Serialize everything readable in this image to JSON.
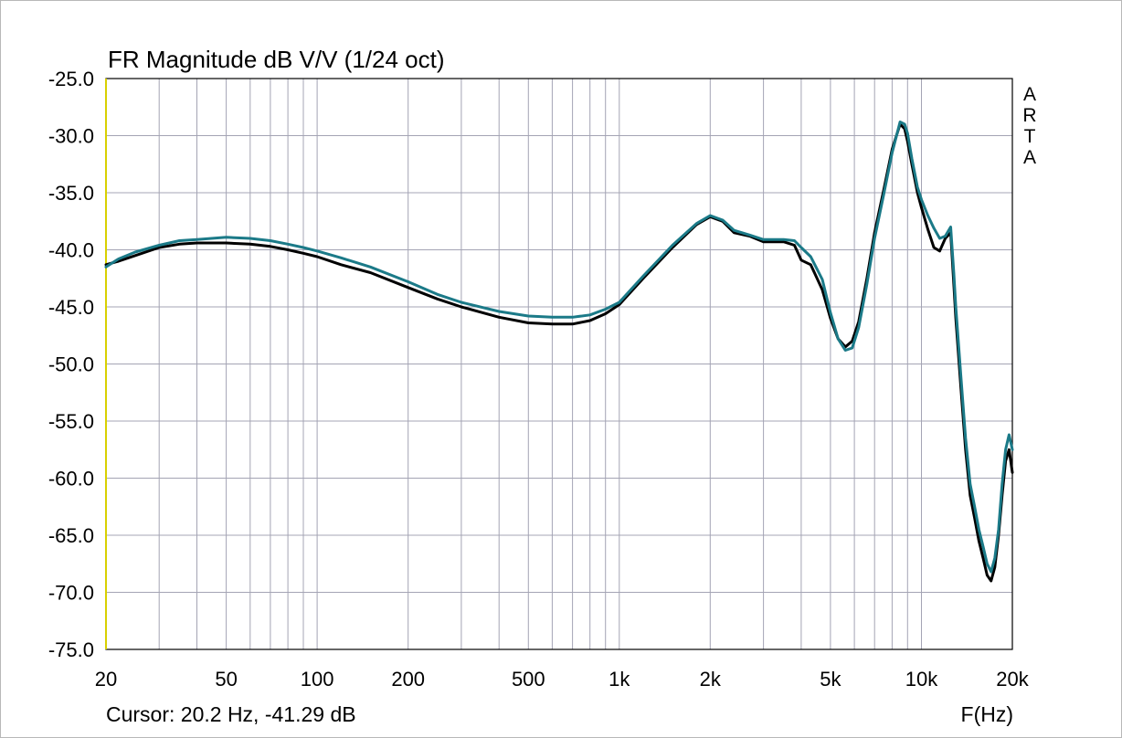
{
  "colors": {
    "background": "#ffffff",
    "grid": "#a4a4b4",
    "axis": "#000000",
    "left_edge": "#d8d000",
    "frame": "#b8b8b8"
  },
  "chart_data": {
    "type": "line",
    "title": "FR Magnitude dB V/V (1/24 oct)",
    "side_label": [
      "A",
      "R",
      "T",
      "A"
    ],
    "xlabel": "F(Hz)",
    "ylabel": "",
    "cursor_readout": "Cursor: 20.2 Hz, -41.29 dB",
    "x_scale": "log",
    "xlim": [
      20,
      20000
    ],
    "ylim": [
      -75,
      -25
    ],
    "grid": true,
    "x_ticks": [
      {
        "value": 20,
        "label": "20"
      },
      {
        "value": 50,
        "label": "50"
      },
      {
        "value": 100,
        "label": "100"
      },
      {
        "value": 200,
        "label": "200"
      },
      {
        "value": 500,
        "label": "500"
      },
      {
        "value": 1000,
        "label": "1k"
      },
      {
        "value": 2000,
        "label": "2k"
      },
      {
        "value": 5000,
        "label": "5k"
      },
      {
        "value": 10000,
        "label": "10k"
      },
      {
        "value": 20000,
        "label": "20k"
      }
    ],
    "y_ticks": [
      {
        "value": -25,
        "label": "-25.0"
      },
      {
        "value": -30,
        "label": "-30.0"
      },
      {
        "value": -35,
        "label": "-35.0"
      },
      {
        "value": -40,
        "label": "-40.0"
      },
      {
        "value": -45,
        "label": "-45.0"
      },
      {
        "value": -50,
        "label": "-50.0"
      },
      {
        "value": -55,
        "label": "-55.0"
      },
      {
        "value": -60,
        "label": "-60.0"
      },
      {
        "value": -65,
        "label": "-65.0"
      },
      {
        "value": -70,
        "label": "-70.0"
      },
      {
        "value": -75,
        "label": "-75.0"
      }
    ],
    "series": [
      {
        "color": "#000000",
        "x": [
          20,
          22,
          25,
          30,
          35,
          40,
          50,
          60,
          70,
          80,
          90,
          100,
          120,
          150,
          200,
          250,
          300,
          400,
          500,
          600,
          700,
          800,
          900,
          1000,
          1200,
          1500,
          1800,
          2000,
          2200,
          2400,
          2700,
          3000,
          3500,
          3800,
          4000,
          4300,
          4700,
          5000,
          5300,
          5600,
          5900,
          6200,
          6600,
          7000,
          7500,
          8000,
          8500,
          8800,
          9000,
          9300,
          9700,
          10000,
          10500,
          11000,
          11500,
          12000,
          12500,
          12800,
          13000,
          13500,
          14000,
          14500,
          15000,
          15500,
          16000,
          16500,
          17000,
          17500,
          18000,
          18500,
          19000,
          19500,
          20000
        ],
        "y": [
          -41.3,
          -41.0,
          -40.5,
          -39.8,
          -39.5,
          -39.4,
          -39.4,
          -39.5,
          -39.7,
          -40.0,
          -40.3,
          -40.6,
          -41.3,
          -42.0,
          -43.3,
          -44.3,
          -45.0,
          -45.9,
          -46.4,
          -46.5,
          -46.5,
          -46.2,
          -45.6,
          -44.8,
          -42.5,
          -39.8,
          -37.8,
          -37.1,
          -37.5,
          -38.5,
          -38.8,
          -39.3,
          -39.3,
          -39.6,
          -40.9,
          -41.3,
          -43.5,
          -46.0,
          -47.8,
          -48.5,
          -48.0,
          -46.3,
          -42.5,
          -38.5,
          -34.8,
          -31.2,
          -29.0,
          -29.4,
          -30.5,
          -32.5,
          -35.0,
          -36.3,
          -38.2,
          -39.8,
          -40.1,
          -39.0,
          -38.5,
          -43.0,
          -46.0,
          -52.0,
          -57.5,
          -61.5,
          -63.5,
          -65.5,
          -67.0,
          -68.5,
          -69.0,
          -67.8,
          -65.0,
          -61.5,
          -58.5,
          -57.5,
          -59.5
        ]
      },
      {
        "color": "#1b7a88",
        "x": [
          20,
          22,
          25,
          30,
          35,
          40,
          50,
          60,
          70,
          80,
          90,
          100,
          120,
          150,
          200,
          250,
          300,
          400,
          500,
          600,
          700,
          800,
          900,
          1000,
          1200,
          1500,
          1800,
          2000,
          2200,
          2400,
          2700,
          3000,
          3500,
          3800,
          4000,
          4300,
          4700,
          5000,
          5300,
          5600,
          5900,
          6200,
          6600,
          7000,
          7500,
          8000,
          8500,
          8800,
          9000,
          9300,
          9700,
          10000,
          10500,
          11000,
          11500,
          12000,
          12500,
          12800,
          13000,
          13500,
          14000,
          14500,
          15000,
          15500,
          16000,
          16500,
          17000,
          17500,
          18000,
          18500,
          19000,
          19500,
          20000
        ],
        "y": [
          -41.5,
          -40.8,
          -40.2,
          -39.6,
          -39.2,
          -39.1,
          -38.9,
          -39.0,
          -39.2,
          -39.5,
          -39.8,
          -40.1,
          -40.7,
          -41.5,
          -42.8,
          -43.9,
          -44.6,
          -45.4,
          -45.8,
          -45.9,
          -45.9,
          -45.7,
          -45.2,
          -44.6,
          -42.3,
          -39.6,
          -37.7,
          -37.0,
          -37.4,
          -38.3,
          -38.7,
          -39.1,
          -39.1,
          -39.2,
          -39.8,
          -40.6,
          -42.6,
          -45.5,
          -47.8,
          -48.8,
          -48.6,
          -46.8,
          -43.0,
          -39.0,
          -35.2,
          -31.5,
          -28.8,
          -29.0,
          -29.8,
          -32.0,
          -34.5,
          -35.6,
          -37.0,
          -38.1,
          -39.0,
          -38.8,
          -38.0,
          -42.0,
          -45.0,
          -51.0,
          -56.5,
          -60.5,
          -62.5,
          -64.5,
          -66.0,
          -67.5,
          -68.2,
          -67.0,
          -64.5,
          -60.5,
          -57.5,
          -56.2,
          -57.5
        ]
      }
    ]
  }
}
